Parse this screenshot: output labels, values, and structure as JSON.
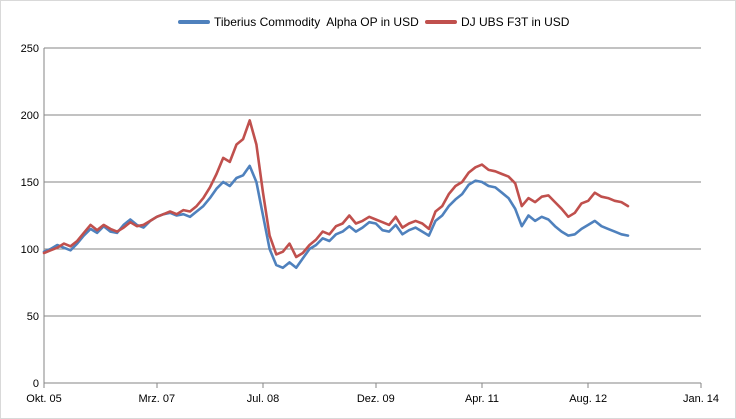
{
  "chart_data": {
    "type": "line",
    "title": "",
    "xlabel": "",
    "ylabel": "",
    "ylim": [
      0,
      250
    ],
    "yticks": [
      0,
      50,
      100,
      150,
      200,
      250
    ],
    "xlim": [
      0,
      100
    ],
    "xticks": [
      {
        "label": "Okt. 05",
        "x": 0
      },
      {
        "label": "Mrz. 07",
        "x": 17
      },
      {
        "label": "Jul. 08",
        "x": 33
      },
      {
        "label": "Dez. 09",
        "x": 50
      },
      {
        "label": "Apr. 11",
        "x": 66
      },
      {
        "label": "Aug. 12",
        "x": 82
      },
      {
        "label": "Jan. 14",
        "x": 99
      }
    ],
    "grid": "horizontal",
    "legend_position": "top",
    "series": [
      {
        "name": "Tiberius Commodity  Alpha OP in USD",
        "color": "#4f81bd",
        "points": [
          [
            0,
            98
          ],
          [
            1,
            100
          ],
          [
            2,
            103
          ],
          [
            3,
            101
          ],
          [
            4,
            99
          ],
          [
            5,
            104
          ],
          [
            6,
            110
          ],
          [
            7,
            115
          ],
          [
            8,
            112
          ],
          [
            9,
            117
          ],
          [
            10,
            113
          ],
          [
            11,
            112
          ],
          [
            12,
            118
          ],
          [
            13,
            122
          ],
          [
            14,
            118
          ],
          [
            15,
            116
          ],
          [
            16,
            121
          ],
          [
            17,
            124
          ],
          [
            18,
            126
          ],
          [
            19,
            127
          ],
          [
            20,
            125
          ],
          [
            21,
            126
          ],
          [
            22,
            124
          ],
          [
            23,
            128
          ],
          [
            24,
            132
          ],
          [
            25,
            138
          ],
          [
            26,
            145
          ],
          [
            27,
            150
          ],
          [
            28,
            147
          ],
          [
            29,
            153
          ],
          [
            30,
            155
          ],
          [
            31,
            162
          ],
          [
            32,
            150
          ],
          [
            33,
            125
          ],
          [
            34,
            100
          ],
          [
            35,
            88
          ],
          [
            36,
            86
          ],
          [
            37,
            90
          ],
          [
            38,
            86
          ],
          [
            39,
            93
          ],
          [
            40,
            100
          ],
          [
            41,
            103
          ],
          [
            42,
            108
          ],
          [
            43,
            106
          ],
          [
            44,
            111
          ],
          [
            45,
            113
          ],
          [
            46,
            117
          ],
          [
            47,
            113
          ],
          [
            48,
            116
          ],
          [
            49,
            120
          ],
          [
            50,
            119
          ],
          [
            51,
            114
          ],
          [
            52,
            113
          ],
          [
            53,
            118
          ],
          [
            54,
            111
          ],
          [
            55,
            114
          ],
          [
            56,
            116
          ],
          [
            57,
            113
          ],
          [
            58,
            110
          ],
          [
            59,
            121
          ],
          [
            60,
            125
          ],
          [
            61,
            132
          ],
          [
            62,
            137
          ],
          [
            63,
            141
          ],
          [
            64,
            148
          ],
          [
            65,
            151
          ],
          [
            66,
            150
          ],
          [
            67,
            147
          ],
          [
            68,
            146
          ],
          [
            69,
            142
          ],
          [
            70,
            138
          ],
          [
            71,
            130
          ],
          [
            72,
            117
          ],
          [
            73,
            125
          ],
          [
            74,
            121
          ],
          [
            75,
            124
          ],
          [
            76,
            122
          ],
          [
            77,
            117
          ],
          [
            78,
            113
          ],
          [
            79,
            110
          ],
          [
            80,
            111
          ],
          [
            81,
            115
          ],
          [
            82,
            118
          ],
          [
            83,
            121
          ],
          [
            84,
            117
          ],
          [
            85,
            115
          ],
          [
            86,
            113
          ],
          [
            87,
            111
          ],
          [
            88,
            110
          ]
        ]
      },
      {
        "name": "DJ UBS F3T in USD",
        "color": "#c0504d",
        "points": [
          [
            0,
            97
          ],
          [
            1,
            99
          ],
          [
            2,
            101
          ],
          [
            3,
            104
          ],
          [
            4,
            102
          ],
          [
            5,
            106
          ],
          [
            6,
            112
          ],
          [
            7,
            118
          ],
          [
            8,
            114
          ],
          [
            9,
            118
          ],
          [
            10,
            115
          ],
          [
            11,
            113
          ],
          [
            12,
            116
          ],
          [
            13,
            120
          ],
          [
            14,
            117
          ],
          [
            15,
            118
          ],
          [
            16,
            121
          ],
          [
            17,
            124
          ],
          [
            18,
            126
          ],
          [
            19,
            128
          ],
          [
            20,
            126
          ],
          [
            21,
            129
          ],
          [
            22,
            128
          ],
          [
            23,
            132
          ],
          [
            24,
            138
          ],
          [
            25,
            146
          ],
          [
            26,
            156
          ],
          [
            27,
            168
          ],
          [
            28,
            165
          ],
          [
            29,
            178
          ],
          [
            30,
            182
          ],
          [
            31,
            196
          ],
          [
            32,
            178
          ],
          [
            33,
            142
          ],
          [
            34,
            110
          ],
          [
            35,
            96
          ],
          [
            36,
            98
          ],
          [
            37,
            104
          ],
          [
            38,
            94
          ],
          [
            39,
            97
          ],
          [
            40,
            103
          ],
          [
            41,
            107
          ],
          [
            42,
            113
          ],
          [
            43,
            111
          ],
          [
            44,
            117
          ],
          [
            45,
            119
          ],
          [
            46,
            125
          ],
          [
            47,
            119
          ],
          [
            48,
            121
          ],
          [
            49,
            124
          ],
          [
            50,
            122
          ],
          [
            51,
            120
          ],
          [
            52,
            118
          ],
          [
            53,
            124
          ],
          [
            54,
            116
          ],
          [
            55,
            119
          ],
          [
            56,
            121
          ],
          [
            57,
            119
          ],
          [
            58,
            115
          ],
          [
            59,
            128
          ],
          [
            60,
            132
          ],
          [
            61,
            141
          ],
          [
            62,
            147
          ],
          [
            63,
            150
          ],
          [
            64,
            157
          ],
          [
            65,
            161
          ],
          [
            66,
            163
          ],
          [
            67,
            159
          ],
          [
            68,
            158
          ],
          [
            69,
            156
          ],
          [
            70,
            154
          ],
          [
            71,
            149
          ],
          [
            72,
            132
          ],
          [
            73,
            138
          ],
          [
            74,
            135
          ],
          [
            75,
            139
          ],
          [
            76,
            140
          ],
          [
            77,
            135
          ],
          [
            78,
            130
          ],
          [
            79,
            124
          ],
          [
            80,
            127
          ],
          [
            81,
            134
          ],
          [
            82,
            136
          ],
          [
            83,
            142
          ],
          [
            84,
            139
          ],
          [
            85,
            138
          ],
          [
            86,
            136
          ],
          [
            87,
            135
          ],
          [
            88,
            132
          ]
        ]
      }
    ]
  }
}
